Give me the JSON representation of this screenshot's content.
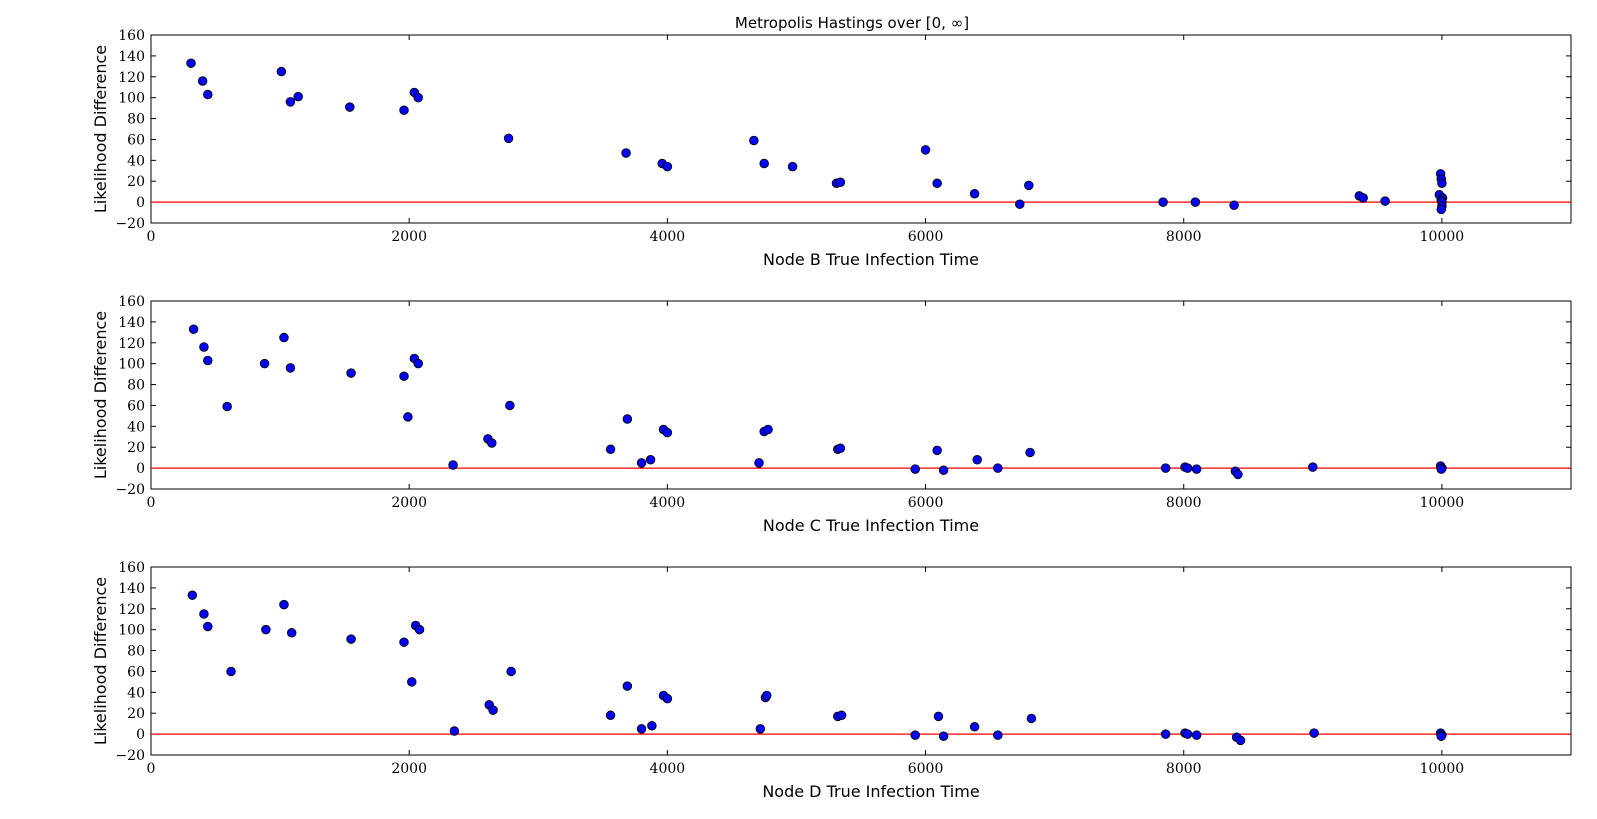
{
  "title": "Metropolis Hastings over [0, ∞]",
  "colors": {
    "points": "#0000ff",
    "reference_line": "#ff0000",
    "frame": "#000000"
  },
  "chart_data": [
    {
      "type": "scatter",
      "xlabel": "Node B True Infection Time",
      "ylabel": "Likelihood Difference",
      "xlim": [
        0,
        11000
      ],
      "ylim": [
        -20,
        160
      ],
      "xticks": [
        0,
        2000,
        4000,
        6000,
        8000,
        10000
      ],
      "yticks": [
        -20,
        0,
        20,
        40,
        60,
        80,
        100,
        120,
        140,
        160
      ],
      "reference_line_y": 0,
      "grid": false,
      "points": [
        [
          310,
          133
        ],
        [
          400,
          116
        ],
        [
          440,
          103
        ],
        [
          1010,
          125
        ],
        [
          1080,
          96
        ],
        [
          1140,
          101
        ],
        [
          1540,
          91
        ],
        [
          1960,
          88
        ],
        [
          2040,
          105
        ],
        [
          2070,
          100
        ],
        [
          2770,
          61
        ],
        [
          3680,
          47
        ],
        [
          3960,
          37
        ],
        [
          4000,
          34
        ],
        [
          4670,
          59
        ],
        [
          4750,
          37
        ],
        [
          4970,
          34
        ],
        [
          5310,
          18
        ],
        [
          5340,
          19
        ],
        [
          6000,
          50
        ],
        [
          6090,
          18
        ],
        [
          6380,
          8
        ],
        [
          6730,
          -2
        ],
        [
          6800,
          16
        ],
        [
          7840,
          0
        ],
        [
          8090,
          0
        ],
        [
          8390,
          -3
        ],
        [
          9360,
          6
        ],
        [
          9390,
          4
        ],
        [
          9560,
          1
        ],
        [
          9990,
          27
        ],
        [
          9995,
          22
        ],
        [
          10000,
          18
        ],
        [
          9980,
          7
        ],
        [
          10005,
          4
        ],
        [
          9995,
          2
        ],
        [
          10000,
          0
        ],
        [
          10000,
          -4
        ],
        [
          9995,
          -7
        ]
      ]
    },
    {
      "type": "scatter",
      "xlabel": "Node C True Infection Time",
      "ylabel": "Likelihood Difference",
      "xlim": [
        0,
        11000
      ],
      "ylim": [
        -20,
        160
      ],
      "xticks": [
        0,
        2000,
        4000,
        6000,
        8000,
        10000
      ],
      "yticks": [
        -20,
        0,
        20,
        40,
        60,
        80,
        100,
        120,
        140,
        160
      ],
      "reference_line_y": 0,
      "grid": false,
      "points": [
        [
          330,
          133
        ],
        [
          410,
          116
        ],
        [
          440,
          103
        ],
        [
          590,
          59
        ],
        [
          880,
          100
        ],
        [
          1030,
          125
        ],
        [
          1080,
          96
        ],
        [
          1550,
          91
        ],
        [
          1960,
          88
        ],
        [
          1990,
          49
        ],
        [
          2040,
          105
        ],
        [
          2070,
          100
        ],
        [
          2340,
          3
        ],
        [
          2610,
          28
        ],
        [
          2640,
          24
        ],
        [
          2780,
          60
        ],
        [
          3560,
          18
        ],
        [
          3690,
          47
        ],
        [
          3800,
          5
        ],
        [
          3870,
          8
        ],
        [
          3970,
          37
        ],
        [
          4000,
          34
        ],
        [
          4710,
          5
        ],
        [
          4750,
          35
        ],
        [
          4780,
          37
        ],
        [
          5320,
          18
        ],
        [
          5340,
          19
        ],
        [
          5920,
          -1
        ],
        [
          6090,
          17
        ],
        [
          6140,
          -2
        ],
        [
          6400,
          8
        ],
        [
          6560,
          0
        ],
        [
          6810,
          15
        ],
        [
          7860,
          0
        ],
        [
          8010,
          1
        ],
        [
          8030,
          0
        ],
        [
          8100,
          -1
        ],
        [
          8400,
          -3
        ],
        [
          8420,
          -6
        ],
        [
          9000,
          1
        ],
        [
          9990,
          2
        ],
        [
          10000,
          0
        ],
        [
          9995,
          -1
        ]
      ]
    },
    {
      "type": "scatter",
      "xlabel": "Node D True Infection Time",
      "ylabel": "Likelihood Difference",
      "xlim": [
        0,
        11000
      ],
      "ylim": [
        -20,
        160
      ],
      "xticks": [
        0,
        2000,
        4000,
        6000,
        8000,
        10000
      ],
      "yticks": [
        -20,
        0,
        20,
        40,
        60,
        80,
        100,
        120,
        140,
        160
      ],
      "reference_line_y": 0,
      "grid": false,
      "points": [
        [
          320,
          133
        ],
        [
          410,
          115
        ],
        [
          440,
          103
        ],
        [
          620,
          60
        ],
        [
          890,
          100
        ],
        [
          1030,
          124
        ],
        [
          1090,
          97
        ],
        [
          1550,
          91
        ],
        [
          1960,
          88
        ],
        [
          2020,
          50
        ],
        [
          2050,
          104
        ],
        [
          2080,
          100
        ],
        [
          2350,
          3
        ],
        [
          2620,
          28
        ],
        [
          2650,
          23
        ],
        [
          2790,
          60
        ],
        [
          3560,
          18
        ],
        [
          3690,
          46
        ],
        [
          3800,
          5
        ],
        [
          3880,
          8
        ],
        [
          3970,
          37
        ],
        [
          4000,
          34
        ],
        [
          4720,
          5
        ],
        [
          4760,
          35
        ],
        [
          4770,
          37
        ],
        [
          5320,
          17
        ],
        [
          5350,
          18
        ],
        [
          5920,
          -1
        ],
        [
          6100,
          17
        ],
        [
          6140,
          -2
        ],
        [
          6380,
          7
        ],
        [
          6560,
          -1
        ],
        [
          6820,
          15
        ],
        [
          7860,
          0
        ],
        [
          8010,
          1
        ],
        [
          8030,
          0
        ],
        [
          8100,
          -1
        ],
        [
          8410,
          -3
        ],
        [
          8440,
          -6
        ],
        [
          9010,
          1
        ],
        [
          9990,
          1
        ],
        [
          10000,
          -1
        ],
        [
          9995,
          -2
        ]
      ]
    }
  ]
}
